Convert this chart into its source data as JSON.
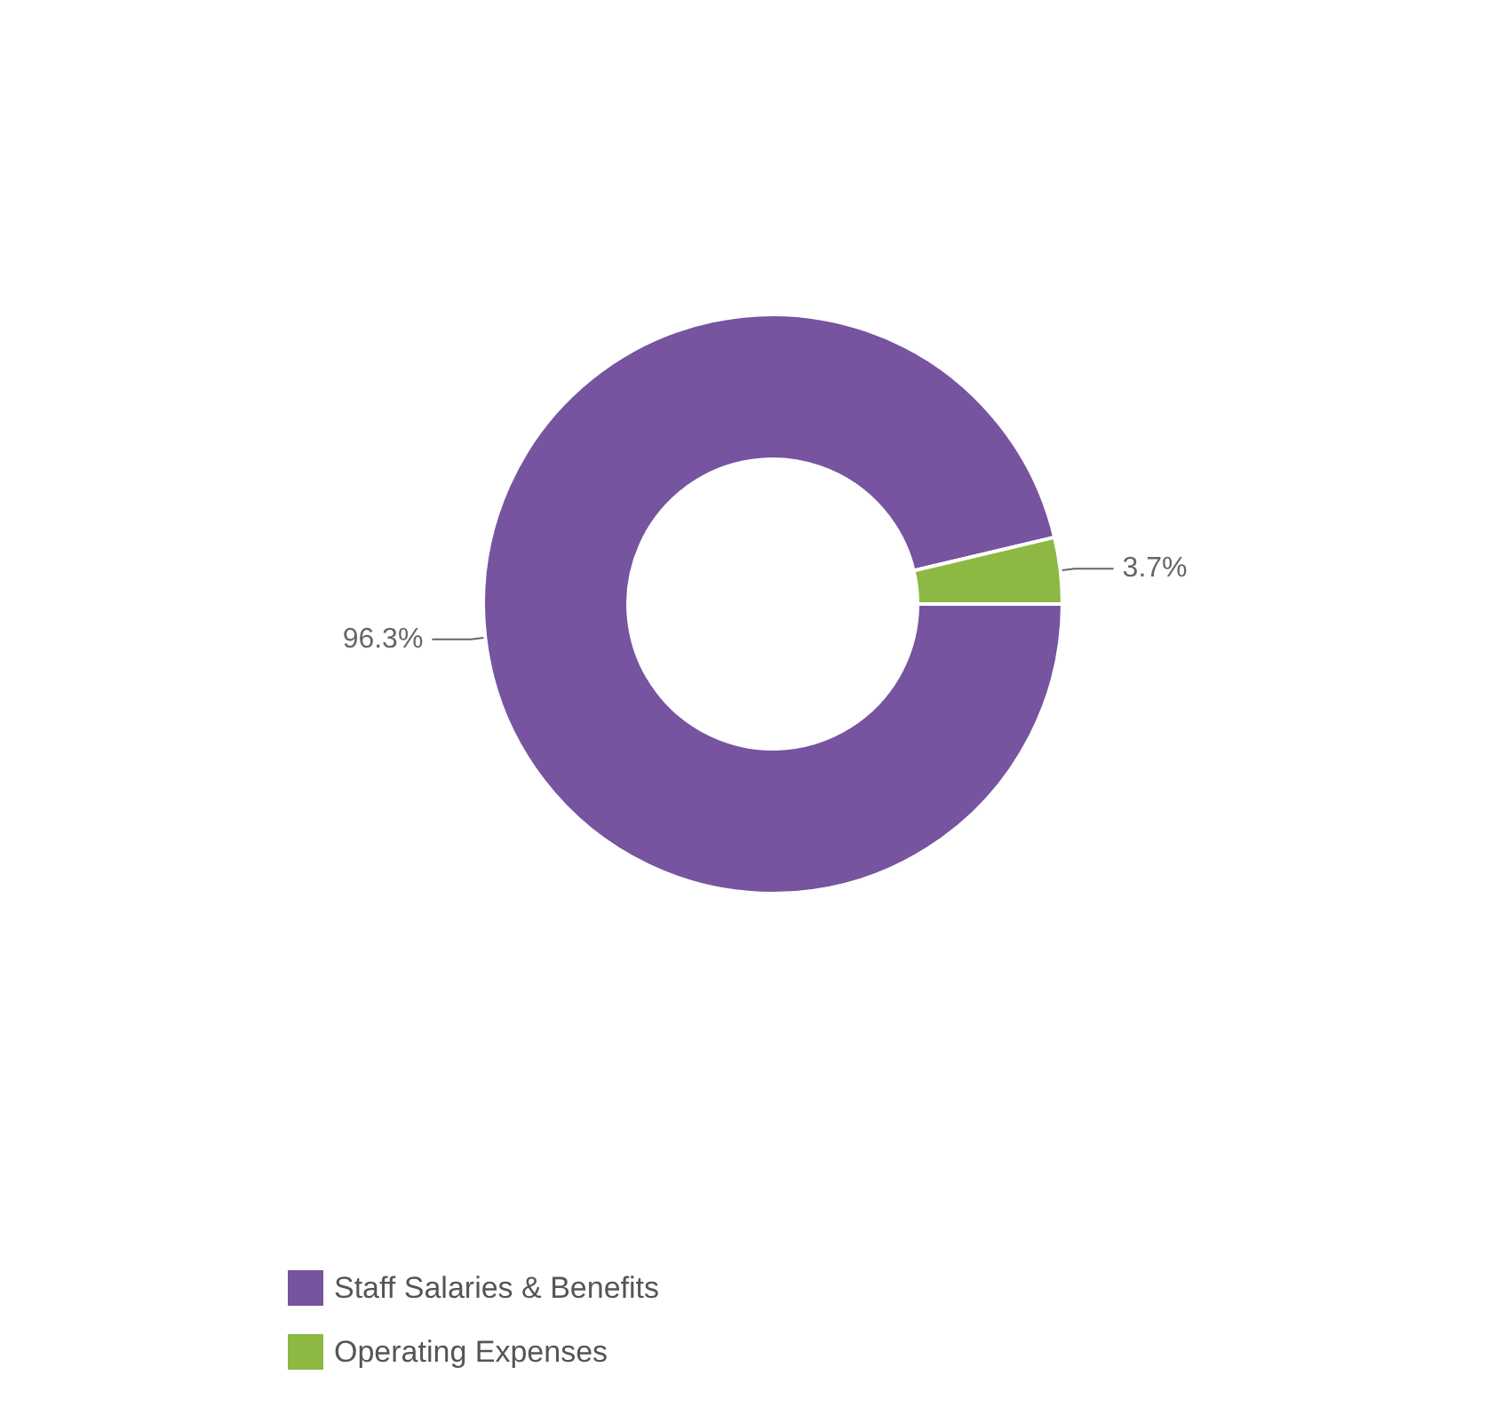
{
  "chart_data": {
    "type": "donut",
    "categories": [
      "Staff Salaries & Benefits",
      "Operating Expenses"
    ],
    "values": [
      96.3,
      3.7
    ],
    "colors": [
      "#7654a0",
      "#8db843"
    ],
    "value_labels": [
      "96.3%",
      "3.7%"
    ],
    "legend": "bottom"
  }
}
